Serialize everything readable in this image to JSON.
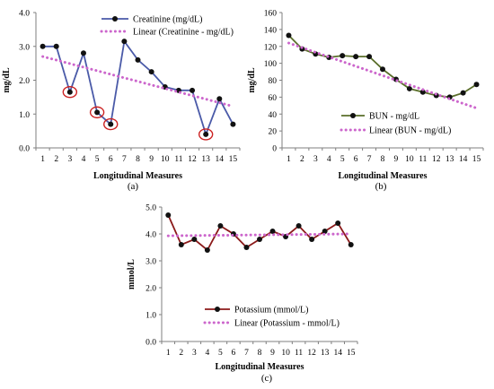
{
  "chart_data": [
    {
      "type": "line",
      "caption": "(a)",
      "xlabel": "Longitudinal Measures",
      "ylabel": "mg/dL",
      "x": [
        1,
        2,
        3,
        4,
        5,
        6,
        7,
        8,
        9,
        10,
        11,
        12,
        13,
        14,
        15
      ],
      "ylim": [
        0,
        4
      ],
      "yticks": [
        "0.0",
        "1.0",
        "2.0",
        "3.0",
        "4.0"
      ],
      "yticks_values": [
        0,
        1,
        2,
        3,
        4
      ],
      "grid": false,
      "legend_position": "top-right",
      "series": [
        {
          "name": "Creatinine (mg/dL)",
          "kind": "data",
          "color": "#4a5aa8",
          "values": [
            3.0,
            3.0,
            1.65,
            2.8,
            1.05,
            0.7,
            3.15,
            2.6,
            2.25,
            1.8,
            1.7,
            1.7,
            0.4,
            1.45,
            0.7
          ]
        },
        {
          "name": "Linear (Creatinine - mg/dL)",
          "kind": "trend",
          "color": "#cc66cc",
          "values": [
            2.7,
            2.595,
            2.49,
            2.385,
            2.28,
            2.175,
            2.07,
            1.965,
            1.86,
            1.755,
            1.65,
            1.545,
            1.44,
            1.335,
            1.23
          ]
        }
      ],
      "highlighted_points": [
        3,
        5,
        6,
        13
      ],
      "highlight_color": "#cc2222"
    },
    {
      "type": "line",
      "caption": "(b)",
      "xlabel": "Longitudinal Measures",
      "ylabel": "mg/dL",
      "x": [
        1,
        2,
        3,
        4,
        5,
        6,
        7,
        8,
        9,
        10,
        11,
        12,
        13,
        14,
        15
      ],
      "ylim": [
        0,
        160
      ],
      "yticks": [
        "0",
        "20",
        "40",
        "60",
        "80",
        "100",
        "120",
        "140",
        "160"
      ],
      "yticks_values": [
        0,
        20,
        40,
        60,
        80,
        100,
        120,
        140,
        160
      ],
      "grid": false,
      "legend_position": "bottom-right",
      "series": [
        {
          "name": "BUN  - mg/dL",
          "kind": "data",
          "color": "#5a6e2a",
          "values": [
            133,
            117,
            111,
            107,
            109,
            108,
            108,
            93,
            81,
            70,
            66,
            62,
            60,
            65,
            75
          ]
        },
        {
          "name": "Linear (BUN - mg/dL)",
          "kind": "trend",
          "color": "#cc66cc",
          "values": [
            124,
            118.5,
            113,
            107.5,
            102,
            96.5,
            91,
            85.5,
            80,
            74.5,
            69,
            63.5,
            58,
            52.5,
            47
          ]
        }
      ]
    },
    {
      "type": "line",
      "caption": "(c)",
      "xlabel": "Longitudinal Measures",
      "ylabel": "mmol/L",
      "x": [
        1,
        2,
        3,
        4,
        5,
        6,
        7,
        8,
        9,
        10,
        11,
        12,
        13,
        14,
        15
      ],
      "ylim": [
        0,
        5
      ],
      "yticks": [
        "0.0",
        "1.0",
        "2.0",
        "3.0",
        "4.0",
        "5.0"
      ],
      "yticks_values": [
        0,
        1,
        2,
        3,
        4,
        5
      ],
      "grid": false,
      "legend_position": "bottom-right",
      "series": [
        {
          "name": "Potassium (mmol/L)",
          "kind": "data",
          "color": "#8b1a1a",
          "values": [
            4.7,
            3.6,
            3.8,
            3.4,
            4.3,
            4.0,
            3.5,
            3.8,
            4.1,
            3.9,
            4.3,
            3.8,
            4.1,
            4.4,
            3.6
          ]
        },
        {
          "name": "Linear (Potassium - mmol/L)",
          "kind": "trend",
          "color": "#cc66cc",
          "values": [
            3.93,
            3.935,
            3.94,
            3.945,
            3.95,
            3.955,
            3.96,
            3.965,
            3.97,
            3.975,
            3.98,
            3.985,
            3.99,
            3.995,
            4.0
          ]
        }
      ]
    }
  ]
}
